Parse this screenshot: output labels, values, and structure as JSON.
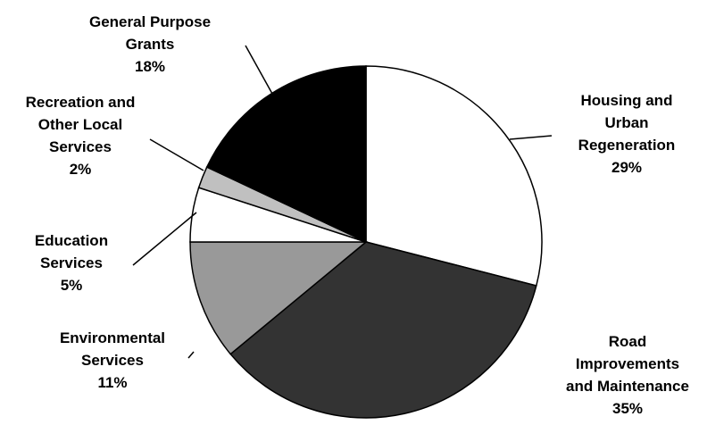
{
  "chart_data": {
    "type": "pie",
    "slices": [
      {
        "label": [
          "Housing and",
          "Urban",
          "Regeneration"
        ],
        "value": 29,
        "pct": "29%",
        "color": "#ffffff"
      },
      {
        "label": [
          "Road",
          "Improvements",
          "and Maintenance"
        ],
        "value": 35,
        "pct": "35%",
        "color": "#333333"
      },
      {
        "label": [
          "Environmental",
          "Services"
        ],
        "value": 11,
        "pct": "11%",
        "color": "#999999"
      },
      {
        "label": [
          "Education",
          "Services"
        ],
        "value": 5,
        "pct": "5%",
        "color": "#ffffff"
      },
      {
        "label": [
          "Recreation and",
          "Other Local",
          "Services"
        ],
        "value": 2,
        "pct": "2%",
        "color": "#c0c0c0"
      },
      {
        "label": [
          "General Purpose",
          "Grants"
        ],
        "value": 18,
        "pct": "18%",
        "color": "#000000"
      }
    ],
    "start_angle": "12 o'clock",
    "direction": "clockwise",
    "legend": "none"
  }
}
